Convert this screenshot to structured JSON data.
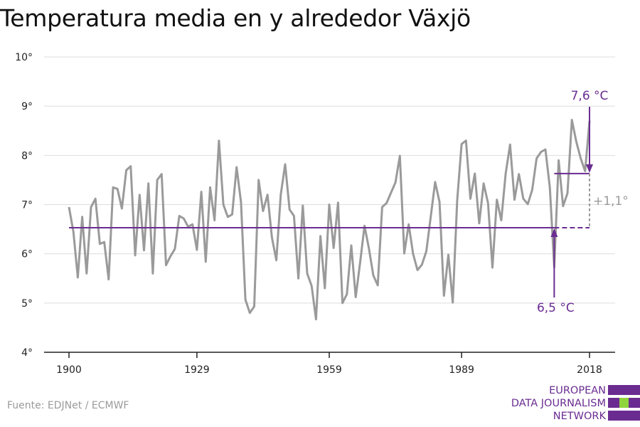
{
  "colors": {
    "series": "#9a9a9a",
    "accent": "#6a2c91",
    "logo_green": "#8fd43b",
    "grid": "#dddddd"
  },
  "source": "Fuente: EDJNet / ECMWF",
  "logo": {
    "line1": "EUROPEAN",
    "line2": "DATA JOURNALISM",
    "line3": "NETWORK"
  },
  "chart_data": {
    "type": "line",
    "title": "Temperatura media en y alrededor Växjö",
    "xlabel": "",
    "ylabel": "",
    "x_ticks": [
      1900,
      1929,
      1959,
      1989,
      2018
    ],
    "y_ticks": [
      "4°",
      "5°",
      "6°",
      "7°",
      "8°",
      "9°",
      "10°"
    ],
    "y_tick_values": [
      4,
      5,
      6,
      7,
      8,
      9,
      10
    ],
    "xlim": [
      1900,
      2018
    ],
    "ylim": [
      4,
      10
    ],
    "grid": true,
    "series": [
      {
        "x": [
          1900,
          1901,
          1902,
          1903,
          1904,
          1905,
          1906,
          1907,
          1908,
          1909,
          1910,
          1911,
          1912,
          1913,
          1914,
          1915,
          1916,
          1917,
          1918,
          1919,
          1920,
          1921,
          1922,
          1923,
          1924,
          1925,
          1926,
          1927,
          1928,
          1929,
          1930,
          1931,
          1932,
          1933,
          1934,
          1935,
          1936,
          1937,
          1938,
          1939,
          1940,
          1941,
          1942,
          1943,
          1944,
          1945,
          1946,
          1947,
          1948,
          1949,
          1950,
          1951,
          1952,
          1953,
          1954,
          1955,
          1956,
          1957,
          1958,
          1959,
          1960,
          1961,
          1962,
          1963,
          1964,
          1965,
          1966,
          1967,
          1968,
          1969,
          1970,
          1971,
          1972,
          1973,
          1974,
          1975,
          1976,
          1977,
          1978,
          1979,
          1980,
          1981,
          1982,
          1983,
          1984,
          1985,
          1986,
          1987,
          1988,
          1989,
          1990,
          1991,
          1992,
          1993,
          1994,
          1995,
          1996,
          1997,
          1998,
          1999,
          2000,
          2001,
          2002,
          2003,
          2004,
          2005,
          2006,
          2007,
          2008,
          2009,
          2010,
          2011,
          2012,
          2013,
          2014,
          2015,
          2016,
          2017,
          2018
        ],
        "values": [
          6.95,
          6.45,
          5.52,
          6.75,
          5.6,
          6.95,
          7.12,
          6.2,
          6.24,
          5.48,
          7.35,
          7.32,
          6.92,
          7.7,
          7.78,
          5.97,
          7.2,
          6.07,
          7.43,
          5.6,
          7.5,
          7.62,
          5.77,
          5.95,
          6.1,
          6.77,
          6.72,
          6.55,
          6.6,
          6.08,
          7.26,
          5.84,
          7.35,
          6.68,
          8.3,
          7.0,
          6.75,
          6.8,
          7.76,
          7.05,
          5.07,
          4.8,
          4.93,
          7.5,
          6.87,
          7.2,
          6.33,
          5.87,
          7.2,
          7.82,
          6.9,
          6.77,
          5.5,
          6.98,
          5.6,
          5.35,
          4.67,
          6.36,
          5.3,
          7.0,
          6.12,
          7.04,
          5.0,
          5.18,
          6.17,
          5.12,
          5.82,
          6.57,
          6.11,
          5.56,
          5.36,
          6.95,
          7.03,
          7.24,
          7.45,
          7.99,
          6.01,
          6.6,
          6.0,
          5.67,
          5.78,
          6.05,
          6.75,
          7.46,
          7.05,
          5.15,
          5.98,
          5.01,
          7.08,
          8.23,
          8.3,
          7.12,
          7.63,
          6.62,
          7.43,
          7.03,
          5.72,
          7.1,
          6.68,
          7.63,
          8.22,
          7.1,
          7.62,
          7.12,
          7.01,
          7.3,
          7.94,
          8.07,
          8.12,
          7.35,
          5.73,
          7.9,
          6.97,
          7.23,
          8.72,
          8.28,
          7.94,
          7.68,
          8.7
        ]
      }
    ],
    "reference_lines": [
      {
        "label": "6,5 °C",
        "value": 6.53,
        "x_start": 1900,
        "x_end": 2018,
        "solid_end": 2010
      },
      {
        "label": "7,6 °C",
        "value": 7.63,
        "x_start": 2010,
        "x_end": 2018
      }
    ],
    "difference_label": "+1,1°"
  }
}
